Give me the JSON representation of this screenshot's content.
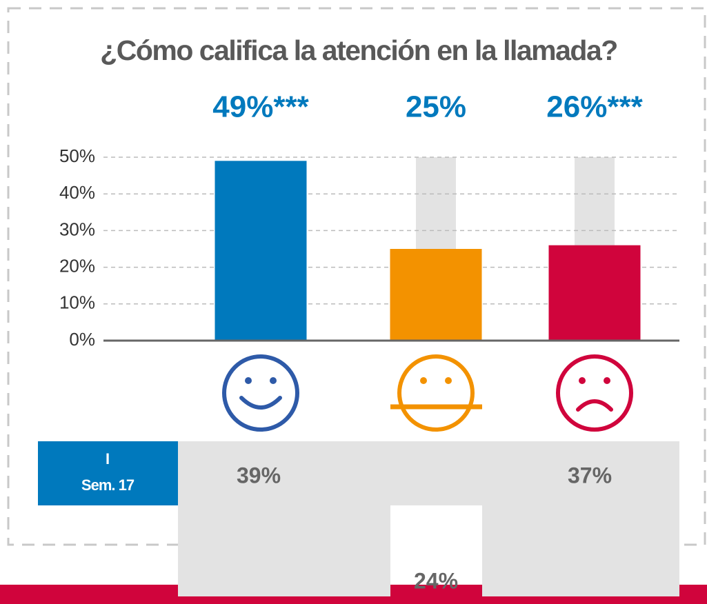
{
  "chart_data": {
    "type": "bar",
    "title": "¿Cómo califica la atención en la llamada?",
    "categories": [
      null,
      null,
      null
    ],
    "values": [
      49,
      25,
      26
    ],
    "value_labels": [
      "49%***",
      "25%",
      "26%***"
    ],
    "colors": [
      "#0079bd",
      "#f39200",
      "#d0043c"
    ],
    "ylim": [
      0,
      50
    ],
    "yticks": [
      {
        "value": 0,
        "label": "0%"
      },
      {
        "value": 10,
        "label": "10%"
      },
      {
        "value": 20,
        "label": "20%"
      },
      {
        "value": 30,
        "label": "30%"
      },
      {
        "value": 40,
        "label": "40%"
      },
      {
        "value": 50,
        "label": "50%"
      }
    ],
    "grid": true,
    "comparison": {
      "label": [
        "I",
        "Sem. 17"
      ],
      "values": [
        "39%",
        "24%",
        "37%"
      ]
    }
  }
}
